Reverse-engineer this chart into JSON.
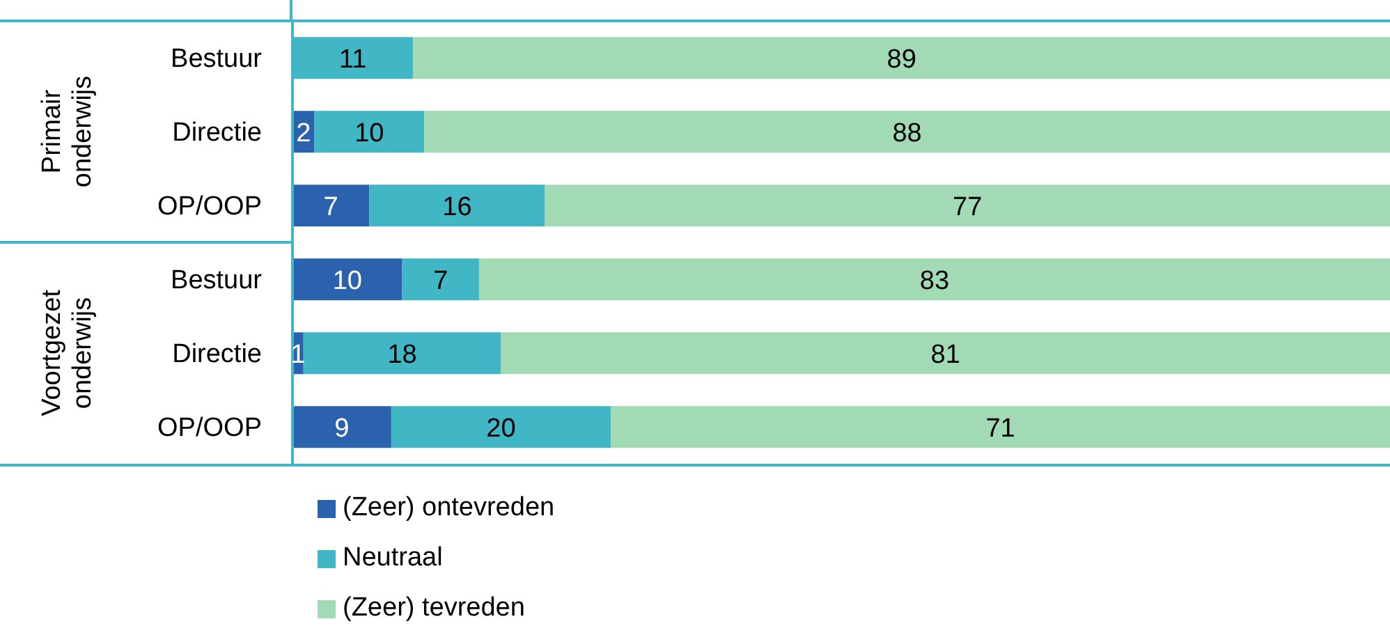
{
  "chart_data": {
    "type": "bar",
    "orientation": "horizontal",
    "stacked": true,
    "categories": [
      "Bestuur",
      "Directie",
      "OP/OOP",
      "Bestuur",
      "Directie",
      "OP/OOP"
    ],
    "annotations": [
      "Primair onderwijs",
      "Voortgezet onderwijs"
    ],
    "series": [
      {
        "name": "(Zeer) ontevreden",
        "color": "#2a62ad",
        "values": [
          0,
          2,
          7,
          10,
          1,
          9
        ],
        "value_labels": [
          null,
          "2",
          "7",
          "10",
          "1",
          "9"
        ]
      },
      {
        "name": "Neutraal",
        "color": "#41b6c4",
        "values": [
          11,
          10,
          16,
          7,
          18,
          20
        ],
        "value_labels": [
          "11",
          "10",
          "16",
          "7",
          "18",
          "20"
        ]
      },
      {
        "name": "(Zeer) tevreden",
        "color": "#a1dab4",
        "values": [
          89,
          88,
          77,
          83,
          81,
          71
        ],
        "value_labels": [
          "89",
          "88",
          "77",
          "83",
          "81",
          "71"
        ]
      }
    ],
    "xlim": [
      0,
      100
    ],
    "tick_labels": "y",
    "grid": false,
    "legend": "bottom"
  }
}
